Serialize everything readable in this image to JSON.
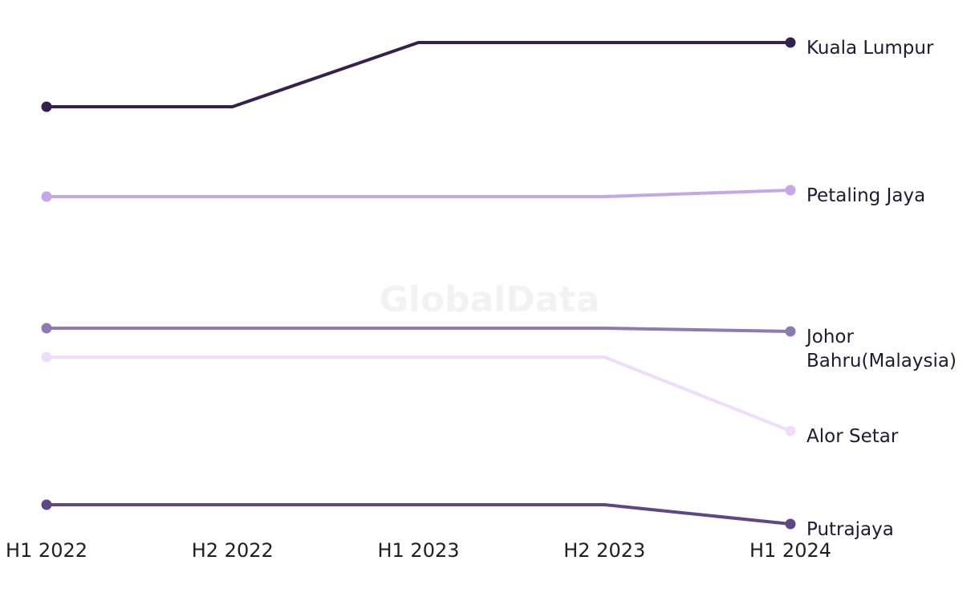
{
  "chart_data": {
    "type": "line",
    "title": "",
    "xlabel": "",
    "ylabel": "",
    "watermark": "GlobalData",
    "categories": [
      "H1 2022",
      "H2 2022",
      "H1 2023",
      "H2 2023",
      "H1 2024"
    ],
    "ylim": [
      0,
      6
    ],
    "grid": false,
    "legend": "direct labels at line ends",
    "series": [
      {
        "name": "Kuala Lumpur",
        "label_lines": [
          "Kuala Lumpur"
        ],
        "color": "#35204f",
        "values": [
          2.0,
          2.0,
          1.0,
          1.0,
          1.0
        ]
      },
      {
        "name": "Petaling Jaya",
        "label_lines": [
          "Petaling Jaya"
        ],
        "color": "#c4a7e7",
        "values": [
          3.4,
          3.4,
          3.4,
          3.4,
          3.3
        ]
      },
      {
        "name": "Johor Bahru(Malaysia)",
        "label_lines": [
          "Johor",
          "Bahru(Malaysia)"
        ],
        "color": "#8f79b2",
        "values": [
          5.45,
          5.45,
          5.45,
          5.45,
          5.5
        ]
      },
      {
        "name": "Alor Setar",
        "label_lines": [
          "Alor Setar"
        ],
        "color": "#efdcfb",
        "values": [
          5.9,
          5.9,
          5.9,
          5.9,
          7.05
        ]
      },
      {
        "name": "Putrajaya",
        "label_lines": [
          "Putrajaya"
        ],
        "color": "#5e4784",
        "values": [
          8.2,
          8.2,
          8.2,
          8.2,
          8.5
        ]
      }
    ]
  }
}
